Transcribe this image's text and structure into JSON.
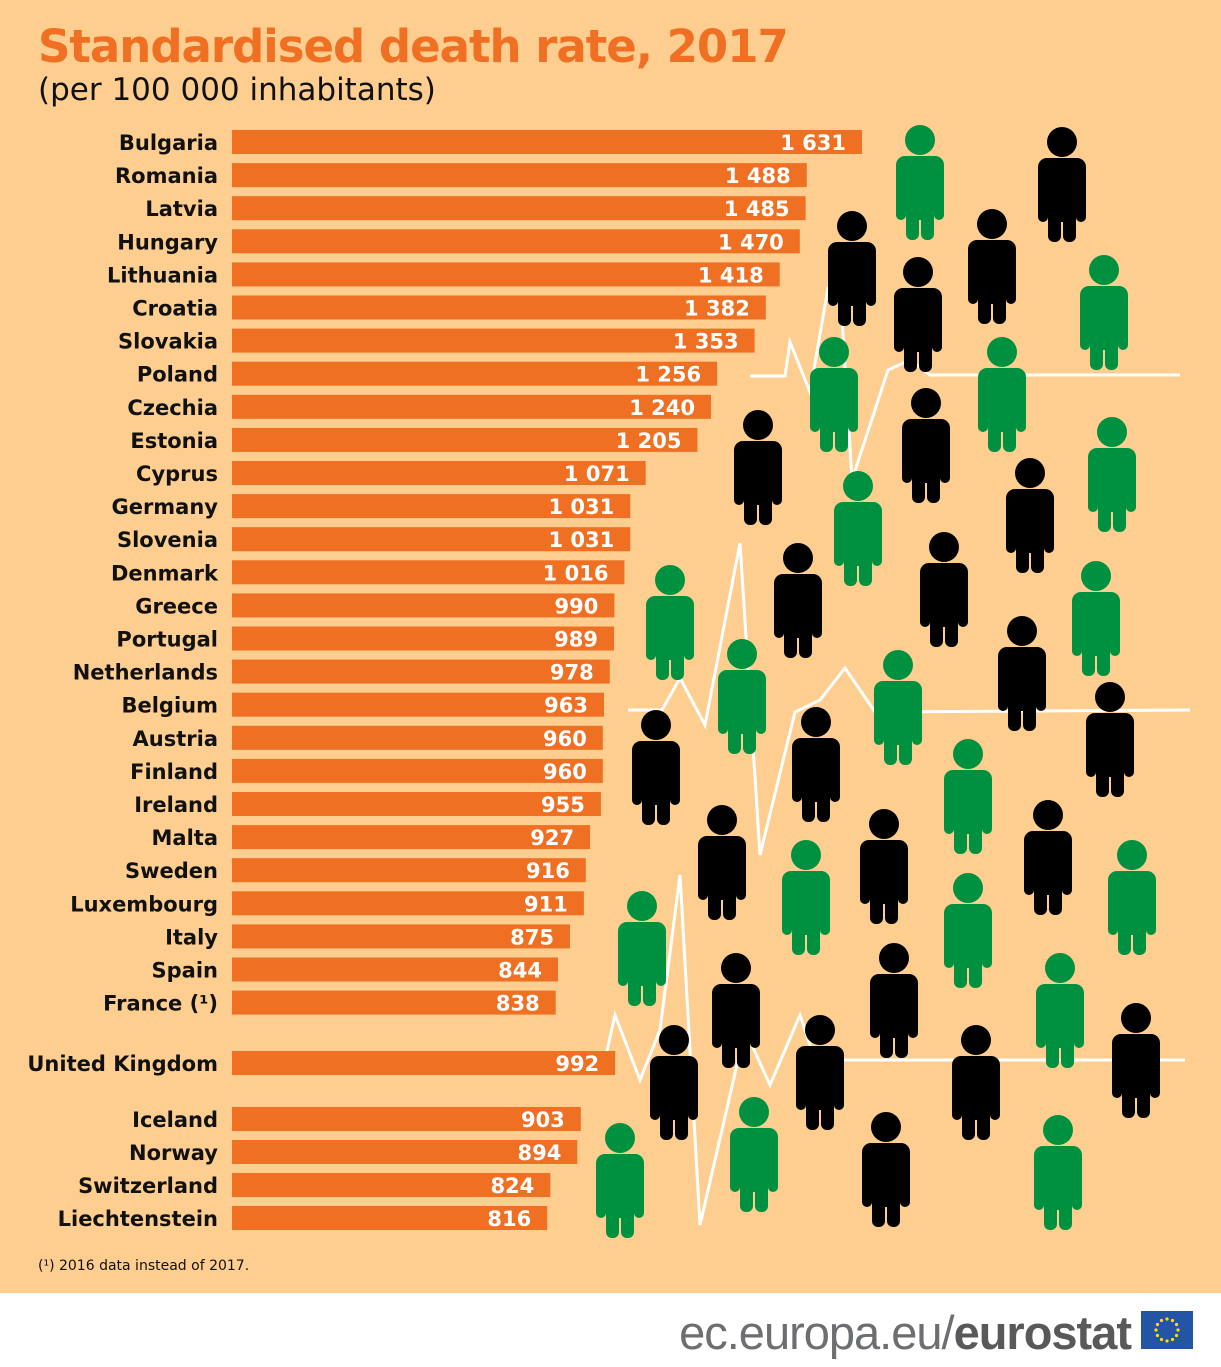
{
  "title": "Standardised death rate, 2017",
  "subtitle": "(per 100 000 inhabitants)",
  "footnote": "(¹) 2016 data instead of 2017.",
  "brand": {
    "domain": "ec.europa.eu/",
    "name": "eurostat"
  },
  "colors": {
    "bar": "#f07023",
    "background": "#fdce8f",
    "person_green": "#009140",
    "person_black": "#000000"
  },
  "chart_data": {
    "type": "bar",
    "orientation": "horizontal",
    "title": "Standardised death rate, 2017",
    "unit": "per 100 000 inhabitants",
    "categories": [
      "Bulgaria",
      "Romania",
      "Latvia",
      "Hungary",
      "Lithuania",
      "Croatia",
      "Slovakia",
      "Poland",
      "Czechia",
      "Estonia",
      "Cyprus",
      "Germany",
      "Slovenia",
      "Denmark",
      "Greece",
      "Portugal",
      "Netherlands",
      "Belgium",
      "Austria",
      "Finland",
      "Ireland",
      "Malta",
      "Sweden",
      "Luxembourg",
      "Italy",
      "Spain",
      "France (¹)",
      "United Kingdom",
      "Iceland",
      "Norway",
      "Switzerland",
      "Liechtenstein"
    ],
    "values": [
      1631,
      1488,
      1485,
      1470,
      1418,
      1382,
      1353,
      1256,
      1240,
      1205,
      1071,
      1031,
      1031,
      1016,
      990,
      989,
      978,
      963,
      960,
      960,
      955,
      927,
      916,
      911,
      875,
      844,
      838,
      992,
      903,
      894,
      824,
      816
    ],
    "labels": [
      "1 631",
      "1 488",
      "1 485",
      "1 470",
      "1 418",
      "1 382",
      "1 353",
      "1 256",
      "1 240",
      "1 205",
      "1 071",
      "1 031",
      "1 031",
      "1 016",
      "990",
      "989",
      "978",
      "963",
      "960",
      "960",
      "955",
      "927",
      "916",
      "911",
      "875",
      "844",
      "838",
      "992",
      "903",
      "894",
      "824",
      "816"
    ]
  }
}
